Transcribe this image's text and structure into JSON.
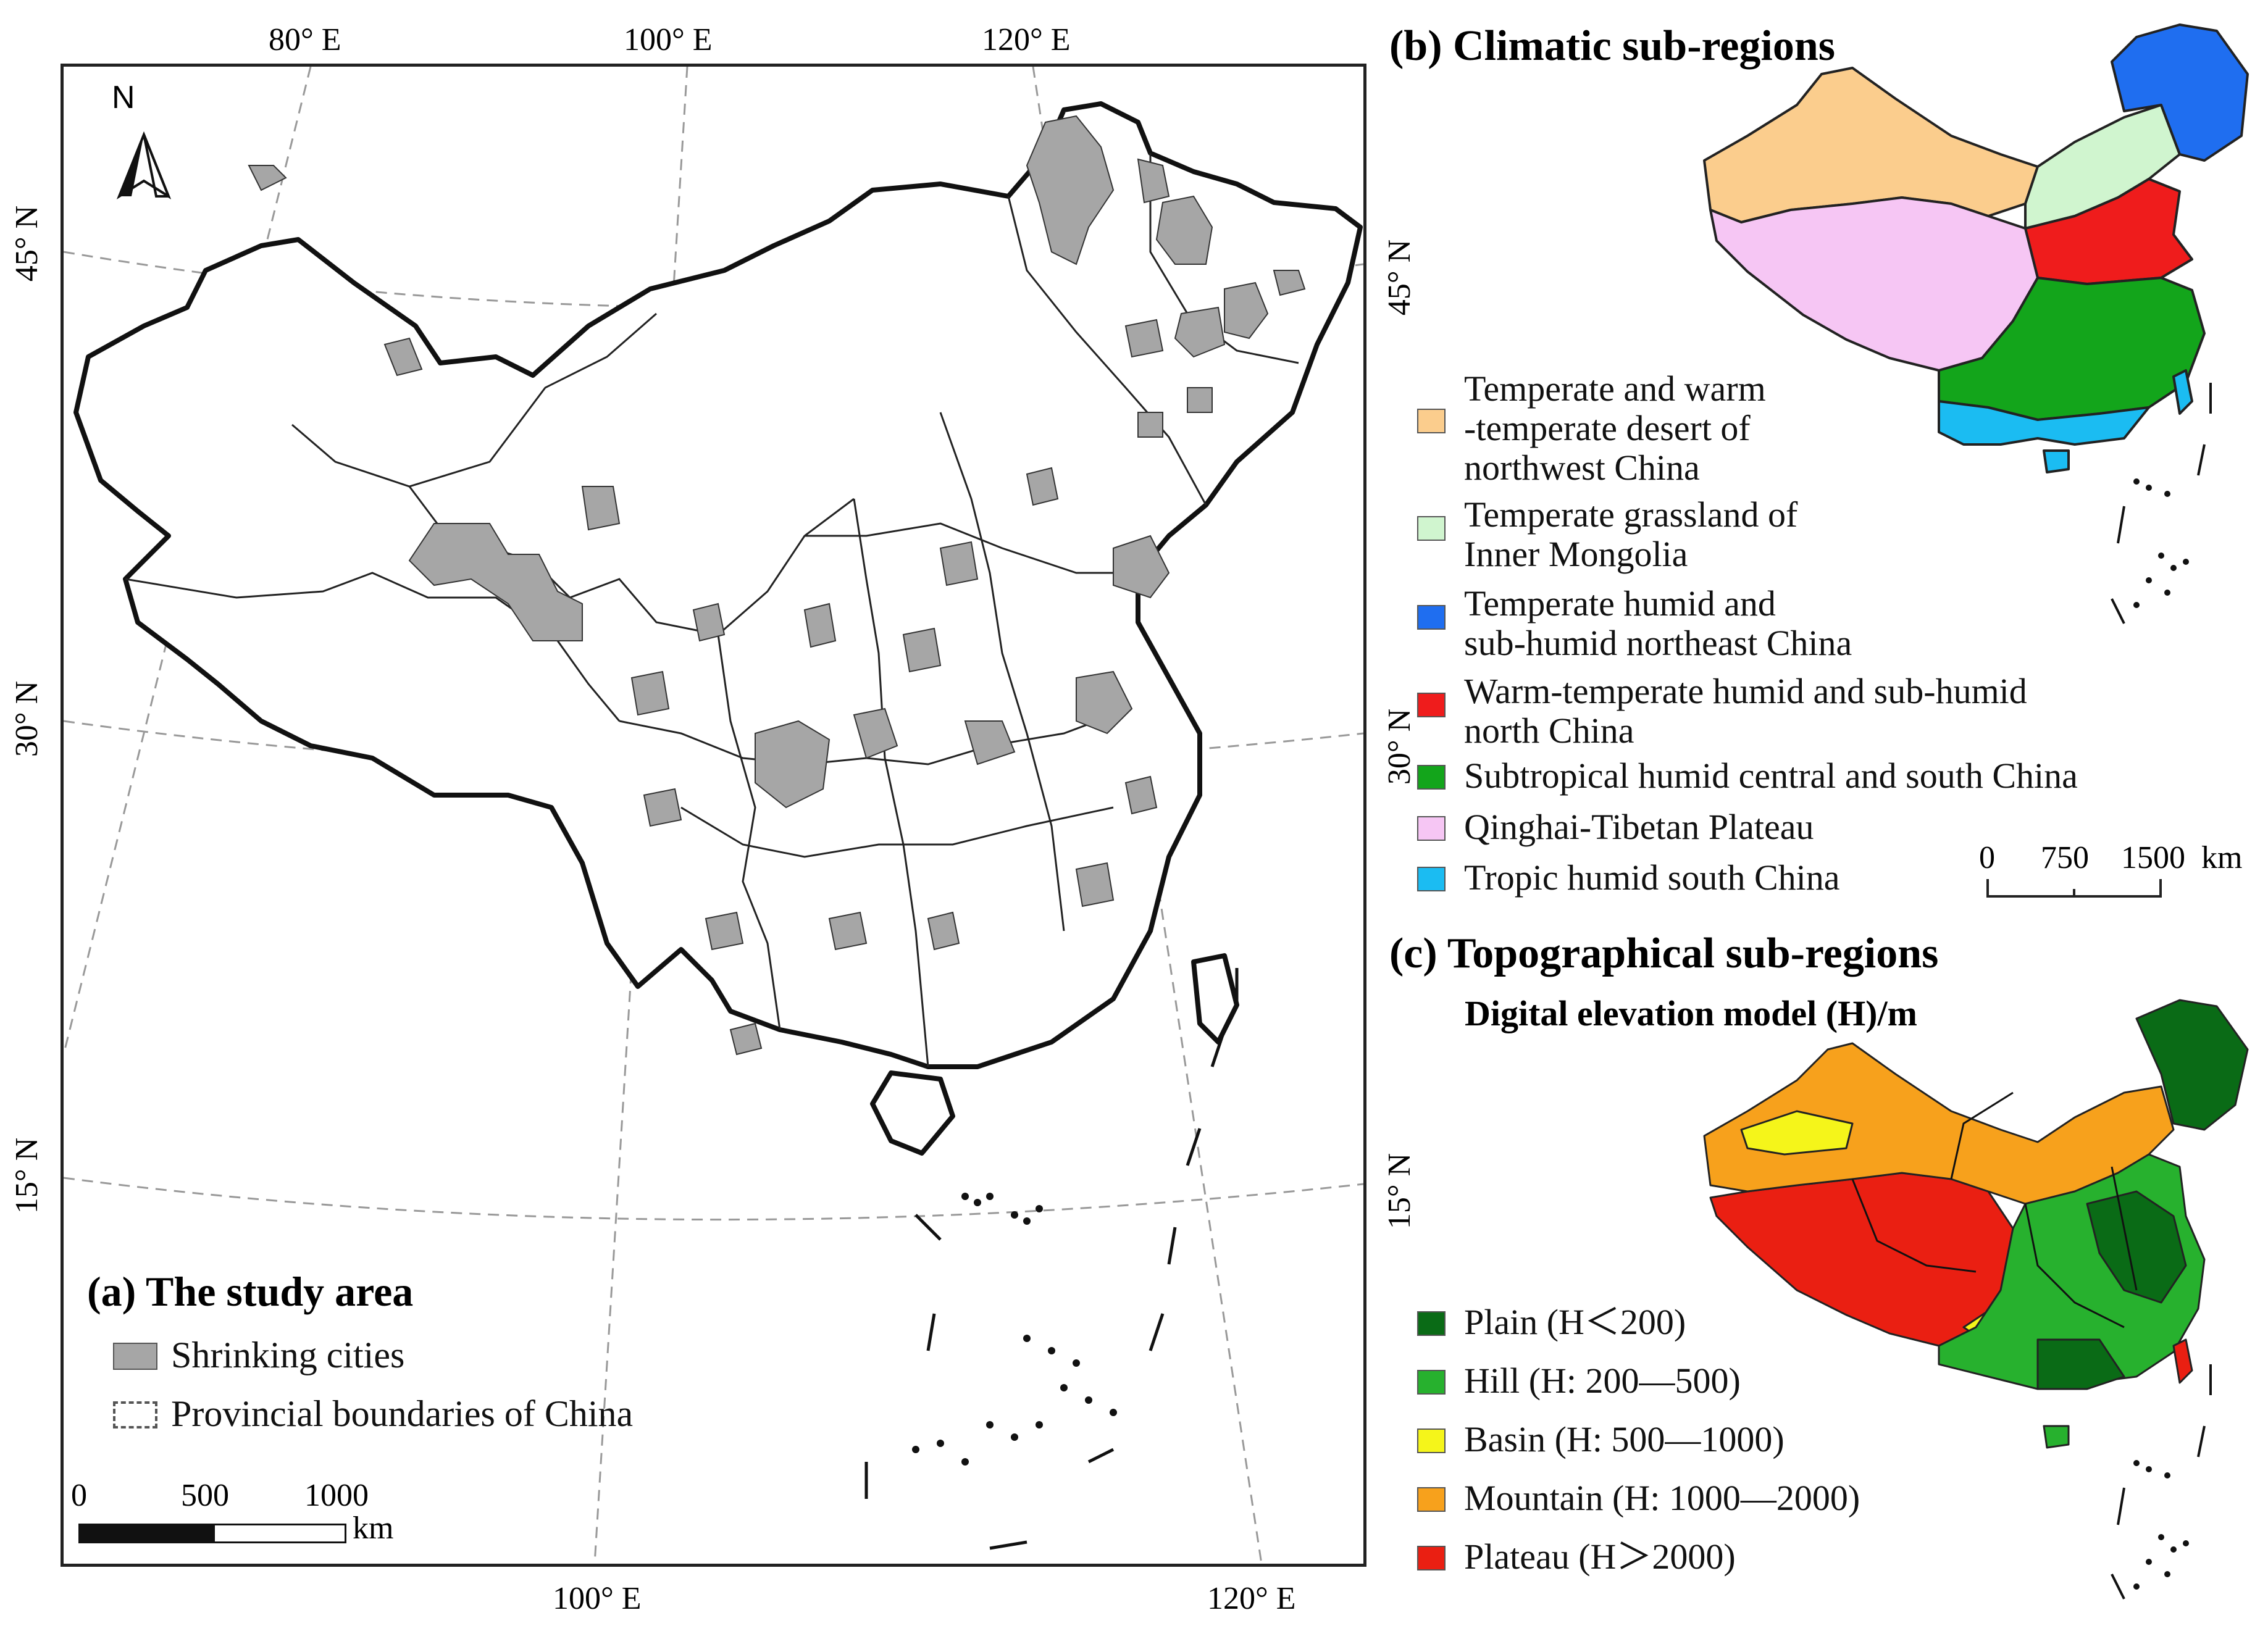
{
  "panel_a": {
    "title": "(a) The study area",
    "graticule": {
      "top": [
        "80° E",
        "100° E",
        "120° E"
      ],
      "bottom": [
        "100° E",
        "120° E"
      ],
      "left": [
        "45° N",
        "30° N",
        "15° N"
      ],
      "right": [
        "45° N",
        "30° N",
        "15° N"
      ]
    },
    "north_label": "N",
    "legend": [
      {
        "label": "Shrinking cities",
        "icon": "gray-filled-box",
        "color": "#a6a6a6"
      },
      {
        "label": "Provincial boundaries of China",
        "icon": "dashed-box",
        "color": "#ffffff"
      }
    ],
    "scale": {
      "ticks": [
        "0",
        "500",
        "1000"
      ],
      "unit": "km"
    }
  },
  "panel_b": {
    "title": "(b) Climatic sub-regions",
    "legend": [
      {
        "label": "Temperate and warm\n-temperate desert of\nnorthwest China",
        "color": "#fbcd8d"
      },
      {
        "label": "Temperate grassland of\nInner Mongolia",
        "color": "#d0f5cf"
      },
      {
        "label": "Temperate humid and\nsub-humid northeast China",
        "color": "#1f6ef0"
      },
      {
        "label": "Warm-temperate humid and sub-humid\nnorth China",
        "color": "#ef1c1c"
      },
      {
        "label": "Subtropical humid central and south China",
        "color": "#13a51b"
      },
      {
        "label": "Qinghai-Tibetan Plateau",
        "color": "#f6c6f4"
      },
      {
        "label": "Tropic humid south China",
        "color": "#1bbcf2"
      }
    ],
    "scale": {
      "ticks": [
        "0",
        "750",
        "1500"
      ],
      "unit": "km"
    }
  },
  "panel_c": {
    "title": "(c) Topographical sub-regions",
    "subtitle": "Digital elevation model (H)/m",
    "legend": [
      {
        "label": "Plain (H＜200)",
        "color": "#0a6b16"
      },
      {
        "label": "Hill (H: 200—500)",
        "color": "#27b12e"
      },
      {
        "label": "Basin (H: 500—1000)",
        "color": "#f5f51a"
      },
      {
        "label": "Mountain (H: 1000—2000)",
        "color": "#f7a11c"
      },
      {
        "label": "Plateau (H＞2000)",
        "color": "#ea1f12"
      }
    ]
  }
}
